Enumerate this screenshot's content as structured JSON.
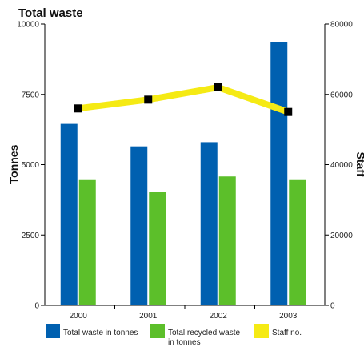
{
  "chart_data": {
    "type": "bar",
    "title": "Total waste",
    "categories": [
      "2000",
      "2001",
      "2002",
      "2003"
    ],
    "ylabel": "Tonnes",
    "y2label": "Staff",
    "ylim": [
      0,
      10000
    ],
    "y2lim": [
      0,
      80000
    ],
    "yticks": [
      "0",
      "2500",
      "5000",
      "7500",
      "10000"
    ],
    "y2ticks": [
      "0",
      "20000",
      "40000",
      "60000",
      "80000"
    ],
    "series": [
      {
        "name": "Total waste in tonnes",
        "type": "bar",
        "axis": "left",
        "color": "#0060b0",
        "values": [
          6450,
          5650,
          5800,
          9350
        ]
      },
      {
        "name": "Total recycled waste in tonnes",
        "type": "bar",
        "axis": "left",
        "color": "#5cbf2a",
        "values": [
          4480,
          4020,
          4580,
          4480
        ]
      },
      {
        "name": "Staff no.",
        "type": "line",
        "axis": "right",
        "color": "#f5ea14",
        "marker_color": "#000000",
        "values": [
          56000,
          58500,
          62000,
          55000
        ]
      }
    ],
    "legend_position": "bottom",
    "grid": false
  }
}
